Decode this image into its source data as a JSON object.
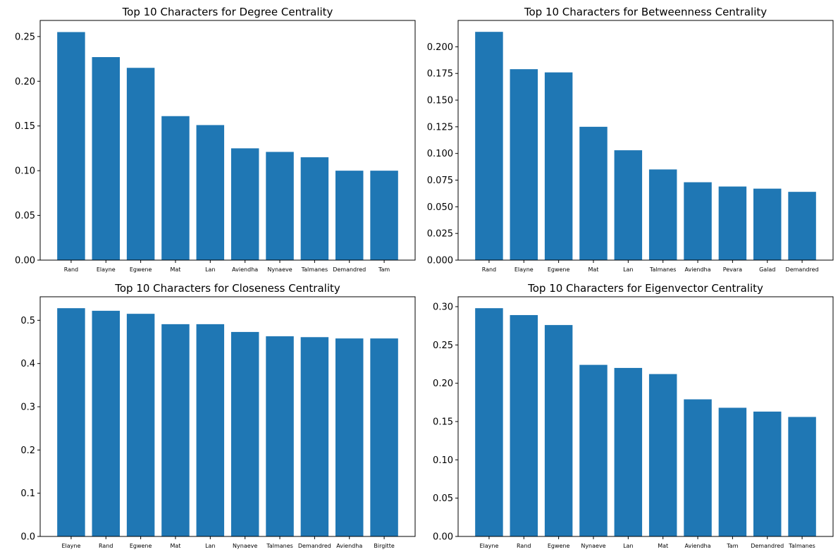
{
  "chart_data": [
    {
      "type": "bar",
      "title": "Top 10 Characters for Degree Centrality",
      "xlabel": "",
      "ylabel": "",
      "categories": [
        "Rand",
        "Elayne",
        "Egwene",
        "Mat",
        "Lan",
        "Aviendha",
        "Nynaeve",
        "Talmanes",
        "Demandred",
        "Tam"
      ],
      "values": [
        0.255,
        0.227,
        0.215,
        0.161,
        0.151,
        0.125,
        0.121,
        0.115,
        0.1,
        0.1
      ],
      "ylim": [
        0,
        0.268
      ],
      "yticks": [
        0.0,
        0.05,
        0.1,
        0.15,
        0.2,
        0.25
      ],
      "ytick_labels": [
        "0.00",
        "0.05",
        "0.10",
        "0.15",
        "0.20",
        "0.25"
      ],
      "color": "#1f77b4",
      "grid": false
    },
    {
      "type": "bar",
      "title": "Top 10 Characters for Betweenness Centrality",
      "xlabel": "",
      "ylabel": "",
      "categories": [
        "Rand",
        "Elayne",
        "Egwene",
        "Mat",
        "Lan",
        "Talmanes",
        "Aviendha",
        "Pevara",
        "Galad",
        "Demandred"
      ],
      "values": [
        0.214,
        0.179,
        0.176,
        0.125,
        0.103,
        0.085,
        0.073,
        0.069,
        0.067,
        0.064
      ],
      "ylim": [
        0,
        0.2247
      ],
      "yticks": [
        0.0,
        0.025,
        0.05,
        0.075,
        0.1,
        0.125,
        0.15,
        0.175,
        0.2
      ],
      "ytick_labels": [
        "0.000",
        "0.025",
        "0.050",
        "0.075",
        "0.100",
        "0.125",
        "0.150",
        "0.175",
        "0.200"
      ],
      "color": "#1f77b4",
      "grid": false
    },
    {
      "type": "bar",
      "title": "Top 10 Characters for Closeness Centrality",
      "xlabel": "",
      "ylabel": "",
      "categories": [
        "Elayne",
        "Rand",
        "Egwene",
        "Mat",
        "Lan",
        "Nynaeve",
        "Talmanes",
        "Demandred",
        "Aviendha",
        "Birgitte"
      ],
      "values": [
        0.528,
        0.522,
        0.515,
        0.491,
        0.491,
        0.473,
        0.463,
        0.461,
        0.458,
        0.458
      ],
      "ylim": [
        0,
        0.5544
      ],
      "yticks": [
        0.0,
        0.1,
        0.2,
        0.3,
        0.4,
        0.5
      ],
      "ytick_labels": [
        "0.0",
        "0.1",
        "0.2",
        "0.3",
        "0.4",
        "0.5"
      ],
      "color": "#1f77b4",
      "grid": false
    },
    {
      "type": "bar",
      "title": "Top 10 Characters for Eigenvector Centrality",
      "xlabel": "",
      "ylabel": "",
      "categories": [
        "Elayne",
        "Rand",
        "Egwene",
        "Nynaeve",
        "Lan",
        "Mat",
        "Aviendha",
        "Tam",
        "Demandred",
        "Talmanes"
      ],
      "values": [
        0.298,
        0.289,
        0.276,
        0.224,
        0.22,
        0.212,
        0.179,
        0.168,
        0.163,
        0.156
      ],
      "ylim": [
        0,
        0.3129
      ],
      "yticks": [
        0.0,
        0.05,
        0.1,
        0.15,
        0.2,
        0.25,
        0.3
      ],
      "ytick_labels": [
        "0.00",
        "0.05",
        "0.10",
        "0.15",
        "0.20",
        "0.25",
        "0.30"
      ],
      "color": "#1f77b4",
      "grid": false
    }
  ]
}
